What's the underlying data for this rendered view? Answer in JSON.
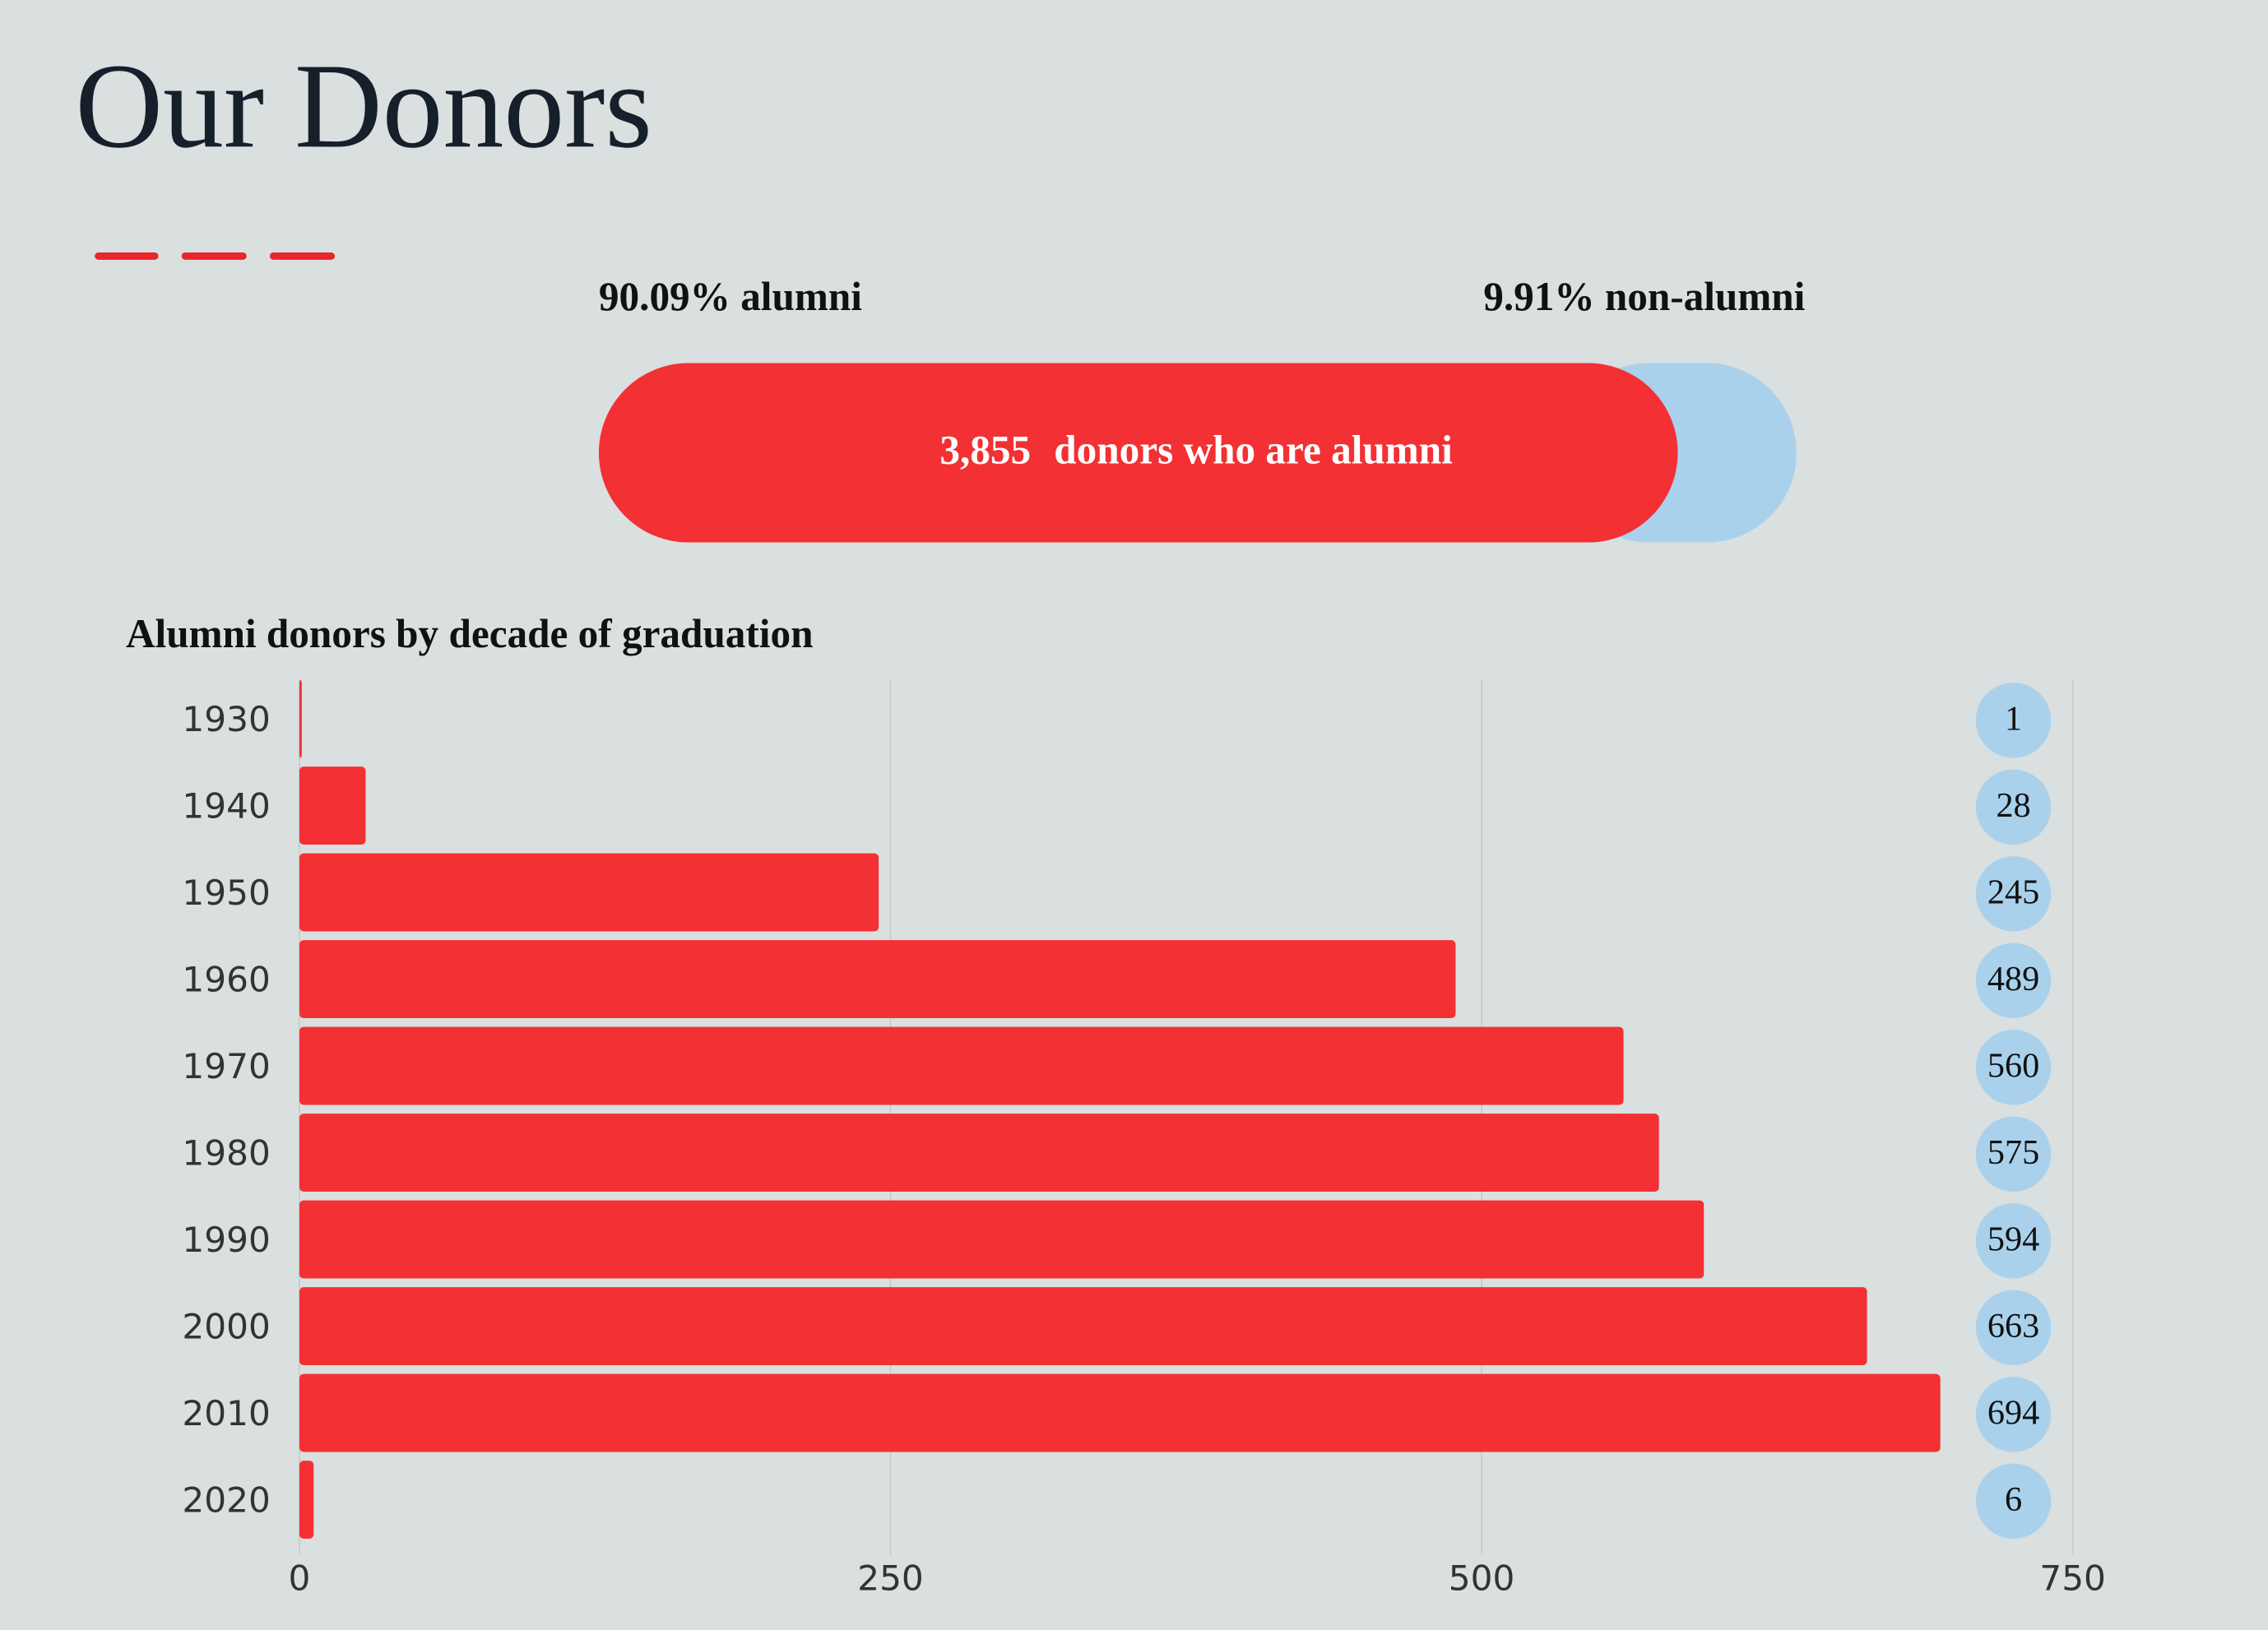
{
  "page": {
    "title": "Our Donors"
  },
  "chart_data": [
    {
      "type": "split-bar",
      "series": [
        {
          "name": "alumni",
          "label": "90.09% alumni",
          "values": [
            90.09
          ],
          "color": "#f33033"
        },
        {
          "name": "non-alumni",
          "label": "9.91% non-alumni",
          "values": [
            9.91
          ],
          "color": "#a9d1ec"
        }
      ],
      "annotation": {
        "value": 3855,
        "label": "3,855",
        "text": "donors who are alumni"
      }
    },
    {
      "type": "hbar",
      "title": "Alumni donors by decade of graduation",
      "categories": [
        "1930",
        "1940",
        "1950",
        "1960",
        "1970",
        "1980",
        "1990",
        "2000",
        "2010",
        "2020"
      ],
      "values": [
        1,
        28,
        245,
        489,
        560,
        575,
        594,
        663,
        694,
        6
      ],
      "color": "#f33033",
      "label_color": "#a9d1ec",
      "xlim": [
        0,
        750
      ],
      "xticks": [
        0,
        250,
        500,
        750
      ],
      "grid": true
    }
  ]
}
